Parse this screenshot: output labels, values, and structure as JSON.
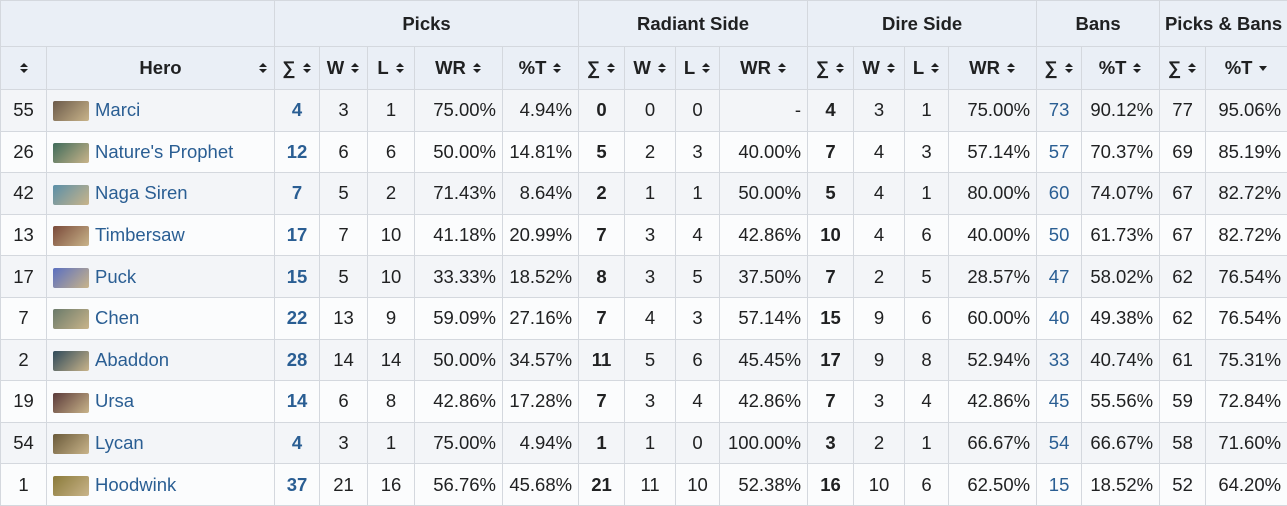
{
  "table": {
    "groups": [
      "Picks",
      "Radiant Side",
      "Dire Side",
      "Bans",
      "Picks & Bans"
    ],
    "columns": [
      "Hero",
      "∑",
      "W",
      "L",
      "WR",
      "%T",
      "∑",
      "W",
      "L",
      "WR",
      "∑",
      "W",
      "L",
      "WR",
      "∑",
      "%T",
      "∑",
      "%T"
    ],
    "rows": [
      [
        55,
        "Marci",
        4,
        3,
        1,
        "75.00%",
        "4.94%",
        0,
        0,
        0,
        "-",
        4,
        3,
        1,
        "75.00%",
        73,
        "90.12%",
        77,
        "95.06%"
      ],
      [
        26,
        "Nature's Prophet",
        12,
        6,
        6,
        "50.00%",
        "14.81%",
        5,
        2,
        3,
        "40.00%",
        7,
        4,
        3,
        "57.14%",
        57,
        "70.37%",
        69,
        "85.19%"
      ],
      [
        42,
        "Naga Siren",
        7,
        5,
        2,
        "71.43%",
        "8.64%",
        2,
        1,
        1,
        "50.00%",
        5,
        4,
        1,
        "80.00%",
        60,
        "74.07%",
        67,
        "82.72%"
      ],
      [
        13,
        "Timbersaw",
        17,
        7,
        10,
        "41.18%",
        "20.99%",
        7,
        3,
        4,
        "42.86%",
        10,
        4,
        6,
        "40.00%",
        50,
        "61.73%",
        67,
        "82.72%"
      ],
      [
        17,
        "Puck",
        15,
        5,
        10,
        "33.33%",
        "18.52%",
        8,
        3,
        5,
        "37.50%",
        7,
        2,
        5,
        "28.57%",
        47,
        "58.02%",
        62,
        "76.54%"
      ],
      [
        7,
        "Chen",
        22,
        13,
        9,
        "59.09%",
        "27.16%",
        7,
        4,
        3,
        "57.14%",
        15,
        9,
        6,
        "60.00%",
        40,
        "49.38%",
        62,
        "76.54%"
      ],
      [
        2,
        "Abaddon",
        28,
        14,
        14,
        "50.00%",
        "34.57%",
        11,
        5,
        6,
        "45.45%",
        17,
        9,
        8,
        "52.94%",
        33,
        "40.74%",
        61,
        "75.31%"
      ],
      [
        19,
        "Ursa",
        14,
        6,
        8,
        "42.86%",
        "17.28%",
        7,
        3,
        4,
        "42.86%",
        7,
        3,
        4,
        "42.86%",
        45,
        "55.56%",
        59,
        "72.84%"
      ],
      [
        54,
        "Lycan",
        4,
        3,
        1,
        "75.00%",
        "4.94%",
        1,
        1,
        0,
        "100.00%",
        3,
        2,
        1,
        "66.67%",
        54,
        "66.67%",
        58,
        "71.60%"
      ],
      [
        1,
        "Hoodwink",
        37,
        21,
        16,
        "56.76%",
        "45.68%",
        21,
        11,
        10,
        "52.38%",
        16,
        10,
        6,
        "62.50%",
        15,
        "18.52%",
        52,
        "64.20%"
      ]
    ]
  }
}
